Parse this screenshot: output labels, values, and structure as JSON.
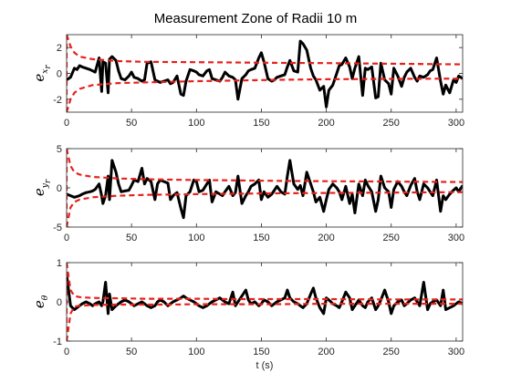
{
  "chart_data": [
    {
      "type": "line",
      "title": "Measurement Zone of Radii 10 m",
      "ylabel": {
        "base": "e",
        "sub": "x",
        "subsub": "r"
      },
      "xlim": [
        0,
        305
      ],
      "ylim": [
        -3,
        3
      ],
      "xticks": [
        "0",
        "50",
        "100",
        "150",
        "200",
        "250",
        "300"
      ],
      "yticks": [
        {
          "v": 2,
          "label": "2"
        },
        {
          "v": 0,
          "label": "0"
        },
        {
          "v": -2,
          "label": "-2"
        }
      ],
      "series": [
        {
          "style": "error",
          "x": [
            0,
            3,
            6,
            8,
            10,
            12,
            15,
            18,
            20,
            22,
            25,
            27,
            28,
            30,
            32,
            33,
            35,
            38,
            40,
            42,
            45,
            48,
            50,
            52,
            55,
            58,
            60,
            62,
            65,
            68,
            70,
            72,
            75,
            78,
            80,
            82,
            85,
            88,
            90,
            92,
            95,
            98,
            100,
            102,
            105,
            108,
            110,
            112,
            115,
            118,
            120,
            122,
            125,
            128,
            130,
            132,
            135,
            138,
            140,
            142,
            145,
            148,
            150,
            152,
            155,
            158,
            160,
            162,
            165,
            168,
            170,
            172,
            175,
            178,
            180,
            182,
            185,
            188,
            190,
            192,
            195,
            198,
            200,
            202,
            205,
            208,
            210,
            212,
            215,
            218,
            220,
            222,
            225,
            228,
            230,
            232,
            235,
            238,
            240,
            242,
            245,
            248,
            250,
            252,
            255,
            258,
            260,
            262,
            265,
            268,
            270,
            272,
            275,
            278,
            280,
            282,
            285,
            288,
            290,
            292,
            295,
            298,
            300,
            302,
            305
          ],
          "y": [
            -0.5,
            -0.3,
            0.4,
            0.3,
            0.6,
            0.5,
            0.4,
            0.3,
            0.2,
            0.1,
            1.2,
            -1.4,
            0.9,
            0.8,
            -1.5,
            1.1,
            1.3,
            1.0,
            0.2,
            -0.4,
            -0.5,
            -0.2,
            0.1,
            -0.3,
            -0.4,
            -0.6,
            -0.5,
            0.8,
            0.9,
            -0.5,
            -0.6,
            -0.7,
            -0.6,
            -0.5,
            -0.8,
            -0.7,
            -0.2,
            -1.6,
            -1.7,
            -0.6,
            0.3,
            0.2,
            0.1,
            -0.1,
            -0.2,
            0.2,
            0.3,
            -0.4,
            -0.5,
            -0.6,
            -0.3,
            0.1,
            -0.2,
            -0.3,
            -0.5,
            -2.0,
            -0.4,
            -0.1,
            0.2,
            0.3,
            0.4,
            1.2,
            1.6,
            0.9,
            -0.4,
            -0.6,
            -0.5,
            -0.3,
            -0.2,
            -0.1,
            0.5,
            1.0,
            0.2,
            0.1,
            2.5,
            2.3,
            1.8,
            0.4,
            -0.2,
            -0.5,
            -1.3,
            -1.0,
            -2.6,
            -1.3,
            -0.9,
            0.0,
            0.6,
            0.7,
            1.2,
            0.5,
            -0.4,
            0.4,
            1.3,
            -1.7,
            0.4,
            0.3,
            0.5,
            -1.9,
            -1.8,
            0.8,
            -0.5,
            -0.8,
            -1.6,
            0.4,
            -0.2,
            -1.0,
            -0.3,
            0.1,
            0.4,
            -0.3,
            -0.6,
            -0.2,
            -0.3,
            -0.1,
            0.2,
            0.3,
            1.2,
            -0.6,
            -1.6,
            -0.9,
            -1.5,
            -0.5,
            -0.7,
            -0.2,
            -0.4
          ]
        },
        {
          "style": "bound",
          "x": [
            0,
            3,
            6,
            10,
            20,
            40,
            60,
            80,
            100,
            130,
            160,
            200,
            250,
            305
          ],
          "y": [
            3.0,
            2.1,
            1.6,
            1.3,
            1.1,
            0.95,
            0.9,
            0.88,
            0.87,
            0.85,
            0.82,
            0.8,
            0.75,
            0.7
          ]
        },
        {
          "style": "bound",
          "x": [
            0,
            3,
            6,
            10,
            20,
            40,
            60,
            80,
            100,
            130,
            160,
            200,
            250,
            305
          ],
          "y": [
            -3.0,
            -2.0,
            -1.5,
            -1.2,
            -0.9,
            -0.75,
            -0.7,
            -0.65,
            -0.6,
            -0.55,
            -0.5,
            -0.45,
            -0.42,
            -0.4
          ]
        }
      ]
    },
    {
      "type": "line",
      "ylabel": {
        "base": "e",
        "sub": "y",
        "subsub": "r"
      },
      "xlim": [
        0,
        305
      ],
      "ylim": [
        -5,
        5
      ],
      "xticks": [
        "0",
        "50",
        "100",
        "150",
        "200",
        "250",
        "300"
      ],
      "yticks": [
        {
          "v": 5,
          "label": "5"
        },
        {
          "v": 0,
          "label": "0"
        },
        {
          "v": -5,
          "label": "-5"
        }
      ],
      "series": [
        {
          "style": "error",
          "x": [
            0,
            3,
            6,
            8,
            10,
            12,
            15,
            18,
            20,
            22,
            25,
            27,
            28,
            30,
            32,
            33,
            35,
            38,
            40,
            42,
            45,
            48,
            50,
            52,
            55,
            58,
            60,
            62,
            65,
            68,
            70,
            72,
            75,
            78,
            80,
            82,
            85,
            88,
            90,
            92,
            95,
            98,
            100,
            102,
            105,
            108,
            110,
            112,
            115,
            118,
            120,
            122,
            125,
            128,
            130,
            132,
            135,
            138,
            140,
            142,
            145,
            148,
            150,
            152,
            155,
            158,
            160,
            162,
            165,
            168,
            170,
            172,
            175,
            178,
            180,
            182,
            185,
            188,
            190,
            192,
            195,
            198,
            200,
            202,
            205,
            208,
            210,
            212,
            215,
            218,
            220,
            222,
            225,
            228,
            230,
            232,
            235,
            238,
            240,
            242,
            245,
            248,
            250,
            252,
            255,
            258,
            260,
            262,
            265,
            268,
            270,
            272,
            275,
            278,
            280,
            282,
            285,
            288,
            290,
            292,
            295,
            298,
            300,
            302,
            305
          ],
          "y": [
            -0.8,
            -1.0,
            -1.2,
            -1.1,
            -1.0,
            -0.8,
            -0.6,
            -0.5,
            -0.4,
            -0.2,
            0.5,
            -1.0,
            -2.0,
            -1.0,
            1.5,
            -1.5,
            3.5,
            2.0,
            0.5,
            -0.5,
            -0.4,
            -0.3,
            0.3,
            1.0,
            0.8,
            2.5,
            0.5,
            1.2,
            0.8,
            -1.5,
            0.5,
            1.0,
            0.8,
            0.6,
            -1.5,
            -1.0,
            -0.6,
            -2.6,
            -3.8,
            -1.0,
            -0.5,
            1.0,
            0.8,
            -0.5,
            -0.3,
            0.5,
            1.0,
            -1.8,
            -0.5,
            -0.8,
            -1.0,
            -0.5,
            0.2,
            -1.0,
            -0.6,
            1.5,
            -2.0,
            -1.0,
            -0.5,
            0.2,
            0.5,
            1.0,
            -1.5,
            -0.5,
            -1.2,
            -0.8,
            -0.3,
            0.2,
            -0.5,
            -0.8,
            1.5,
            3.5,
            0.5,
            -0.2,
            0.3,
            -1.0,
            2.0,
            0.5,
            -0.5,
            -1.8,
            -1.2,
            -3.0,
            -1.5,
            -0.2,
            0.5,
            0.0,
            -0.5,
            -1.5,
            0.2,
            -2.0,
            -0.8,
            -3.2,
            0.5,
            -1.0,
            1.0,
            0.3,
            -0.5,
            -3.0,
            -1.5,
            1.5,
            0.0,
            -0.5,
            -2.5,
            -0.2,
            0.8,
            0.2,
            -0.5,
            -1.0,
            0.3,
            1.2,
            -0.5,
            -1.5,
            0.5,
            0.0,
            -0.5,
            -1.0,
            1.0,
            -3.0,
            -1.0,
            -1.5,
            -0.8,
            -0.3,
            0.0,
            -0.5,
            0.3
          ]
        },
        {
          "style": "bound",
          "x": [
            0,
            3,
            6,
            10,
            20,
            40,
            60,
            80,
            100,
            130,
            160,
            200,
            250,
            305
          ],
          "y": [
            5.0,
            2.8,
            2.0,
            1.7,
            1.4,
            1.2,
            1.1,
            1.05,
            1.0,
            0.95,
            0.9,
            0.85,
            0.8,
            0.75
          ]
        },
        {
          "style": "bound",
          "x": [
            0,
            3,
            6,
            10,
            20,
            40,
            60,
            80,
            100,
            130,
            160,
            200,
            250,
            305
          ],
          "y": [
            -5.0,
            -2.5,
            -1.8,
            -1.5,
            -1.2,
            -1.0,
            -0.9,
            -0.85,
            -0.8,
            -0.75,
            -0.7,
            -0.65,
            -0.6,
            -0.55
          ]
        }
      ]
    },
    {
      "type": "line",
      "xlabel": "t (s)",
      "ylabel": {
        "base": "e",
        "sub": "θ",
        "subsub": ""
      },
      "xlim": [
        0,
        305
      ],
      "ylim": [
        -1,
        1
      ],
      "xticks": [
        "0",
        "50",
        "100",
        "150",
        "200",
        "250",
        "300"
      ],
      "yticks": [
        {
          "v": 1,
          "label": "1"
        },
        {
          "v": 0,
          "label": "0"
        },
        {
          "v": -1,
          "label": "-1"
        }
      ],
      "series": [
        {
          "style": "error",
          "x": [
            0,
            3,
            6,
            8,
            10,
            12,
            15,
            18,
            20,
            22,
            25,
            27,
            28,
            30,
            32,
            33,
            35,
            38,
            40,
            42,
            45,
            48,
            50,
            52,
            55,
            58,
            60,
            62,
            65,
            68,
            70,
            72,
            75,
            78,
            80,
            82,
            85,
            88,
            90,
            92,
            95,
            98,
            100,
            102,
            105,
            108,
            110,
            112,
            115,
            118,
            120,
            122,
            125,
            128,
            130,
            132,
            135,
            138,
            140,
            142,
            145,
            148,
            150,
            152,
            155,
            158,
            160,
            162,
            165,
            168,
            170,
            172,
            175,
            178,
            180,
            182,
            185,
            188,
            190,
            192,
            195,
            198,
            200,
            202,
            205,
            208,
            210,
            212,
            215,
            218,
            220,
            222,
            225,
            228,
            230,
            232,
            235,
            238,
            240,
            242,
            245,
            248,
            250,
            252,
            255,
            258,
            260,
            262,
            265,
            268,
            270,
            272,
            275,
            278,
            280,
            282,
            285,
            288,
            290,
            292,
            295,
            298,
            300,
            302,
            305
          ],
          "y": [
            0.7,
            -0.1,
            -0.2,
            -0.15,
            -0.1,
            -0.05,
            0.0,
            -0.05,
            -0.1,
            -0.05,
            0.0,
            -0.1,
            0.0,
            0.5,
            -0.3,
            0.2,
            -0.2,
            -0.1,
            -0.05,
            0.0,
            0.05,
            0.0,
            -0.05,
            -0.1,
            -0.05,
            0.0,
            -0.05,
            -0.1,
            -0.15,
            -0.1,
            0.0,
            0.05,
            0.0,
            -0.1,
            -0.05,
            0.0,
            0.05,
            0.1,
            0.15,
            0.1,
            0.05,
            0.0,
            -0.05,
            -0.1,
            -0.15,
            -0.1,
            -0.05,
            0.0,
            0.05,
            0.1,
            0.05,
            0.0,
            -0.05,
            0.25,
            -0.1,
            0.0,
            0.15,
            0.3,
            0.05,
            -0.05,
            0.0,
            -0.1,
            -0.05,
            0.05,
            0.0,
            -0.1,
            -0.05,
            0.0,
            0.05,
            0.1,
            0.3,
            0.1,
            0.0,
            -0.05,
            -0.1,
            -0.15,
            -0.05,
            0.2,
            0.35,
            0.1,
            -0.15,
            -0.3,
            0.1,
            0.05,
            -0.05,
            -0.1,
            -0.15,
            0.0,
            0.25,
            0.1,
            -0.2,
            -0.1,
            0.05,
            -0.1,
            -0.15,
            0.0,
            0.1,
            -0.2,
            -0.1,
            0.05,
            0.3,
            0.0,
            -0.3,
            -0.1,
            0.0,
            0.05,
            -0.1,
            -0.05,
            0.05,
            0.1,
            0.0,
            -0.1,
            0.5,
            -0.2,
            -0.05,
            0.0,
            0.05,
            -0.1,
            0.3,
            -0.2,
            -0.15,
            -0.1,
            -0.05,
            0.0,
            -0.05
          ]
        },
        {
          "style": "bound",
          "x": [
            0,
            3,
            6,
            10,
            20,
            40,
            60,
            80,
            100,
            130,
            160,
            200,
            250,
            305
          ],
          "y": [
            1.0,
            0.3,
            0.15,
            0.12,
            0.1,
            0.09,
            0.08,
            0.08,
            0.08,
            0.07,
            0.07,
            0.07,
            0.06,
            0.06
          ]
        },
        {
          "style": "bound",
          "x": [
            0,
            3,
            6,
            10,
            20,
            40,
            60,
            80,
            100,
            130,
            160,
            200,
            250,
            305
          ],
          "y": [
            -1.0,
            -0.3,
            -0.12,
            -0.1,
            -0.08,
            -0.07,
            -0.07,
            -0.07,
            -0.06,
            -0.06,
            -0.06,
            -0.05,
            -0.05,
            -0.05
          ]
        }
      ]
    }
  ]
}
